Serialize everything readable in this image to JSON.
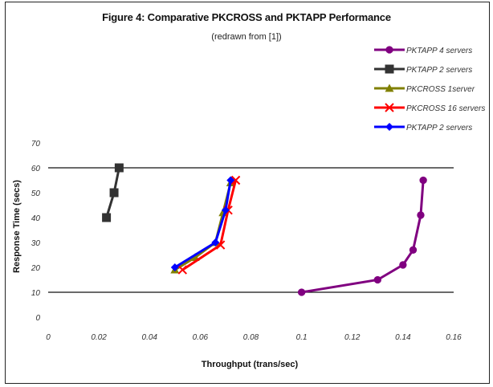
{
  "chart_data": {
    "type": "line",
    "title": "Figure 4: Comparative PKCROSS and PKTAPP Performance",
    "subtitle": "(redrawn from [1])",
    "xlabel": "Throughput (trans/sec)",
    "ylabel": "Response Time (secs)",
    "xlim": [
      0,
      0.16
    ],
    "ylim": [
      0,
      70
    ],
    "xticks": [
      "0",
      "0.02",
      "0.04",
      "0.06",
      "0.08",
      "0.1",
      "0.12",
      "0.14",
      "0.16"
    ],
    "yticks": [
      "0",
      "10",
      "20",
      "30",
      "40",
      "50",
      "60",
      "70"
    ],
    "gridlines_y": [
      10,
      60
    ],
    "legend_position": "top-right",
    "series": [
      {
        "name": "PKTAPP 4 servers",
        "color": "#800080",
        "marker": "circle",
        "x": [
          0.1,
          0.13,
          0.14,
          0.144,
          0.147,
          0.148
        ],
        "y": [
          10,
          15,
          21,
          27,
          41,
          55
        ]
      },
      {
        "name": "PKTAPP 2 servers",
        "color": "#333333",
        "marker": "square",
        "x": [
          0.023,
          0.026,
          0.028
        ],
        "y": [
          40,
          50,
          60
        ]
      },
      {
        "name": "PKCROSS 1server",
        "color": "#808000",
        "marker": "triangle",
        "x": [
          0.05,
          0.058,
          0.066,
          0.069,
          0.072
        ],
        "y": [
          19,
          24,
          30,
          42,
          54
        ]
      },
      {
        "name": "PKCROSS 16 servers",
        "color": "#ff0000",
        "marker": "x",
        "x": [
          0.053,
          0.068,
          0.071,
          0.074
        ],
        "y": [
          19,
          29,
          43,
          55
        ]
      },
      {
        "name": "PKTAPP 2 servers",
        "color": "#0000ff",
        "marker": "diamond",
        "x": [
          0.05,
          0.066,
          0.07,
          0.072
        ],
        "y": [
          20,
          30,
          43,
          55
        ]
      }
    ]
  }
}
